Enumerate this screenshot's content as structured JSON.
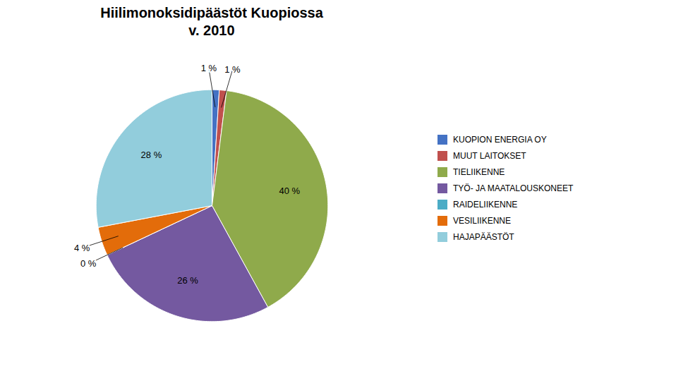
{
  "chart_data": {
    "type": "pie",
    "title": "Hiilimonoksidipäästöt Kuopiossa\nv. 2010",
    "categories": [
      "KUOPION ENERGIA OY",
      "MUUT LAITOKSET",
      "TIELIIKENNE",
      "TYÖ- JA MAATALOUSKONEET",
      "RAIDELIIKENNE",
      "VESILIIKENNE",
      "HAJAPÄÄSTÖT"
    ],
    "values": [
      1,
      1,
      40,
      26,
      0,
      4,
      28
    ],
    "value_labels": [
      "1 %",
      "1 %",
      "40 %",
      "26 %",
      "0 %",
      "4 %",
      "28 %"
    ],
    "colors": [
      "#4472c4",
      "#c0504d",
      "#8faa4b",
      "#7459a0",
      "#4bacc6",
      "#e36c0a",
      "#92cddc"
    ],
    "data_labels": true,
    "legend": "right"
  }
}
